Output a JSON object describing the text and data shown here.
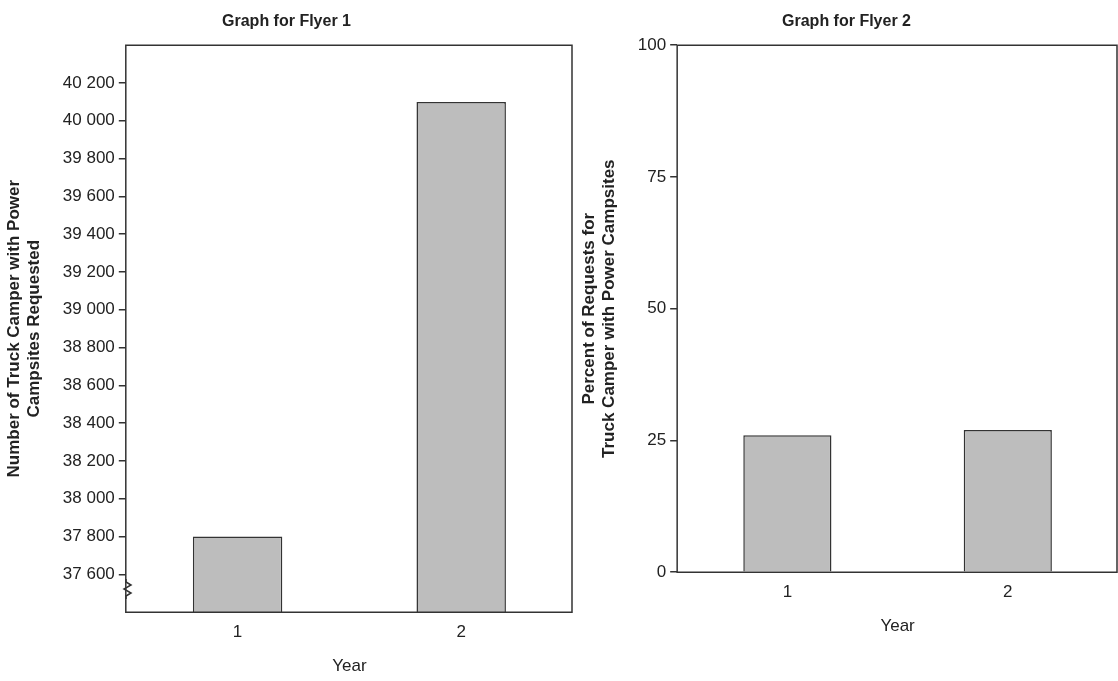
{
  "chart_data": [
    {
      "type": "bar",
      "title": "Graph for Flyer 1",
      "xlabel": "Year",
      "ylabel": "Number of Truck Camper with Power\nCampsites Requested",
      "categories": [
        "1",
        "2"
      ],
      "values": [
        37800,
        40100
      ],
      "color": "#bdbdbd",
      "ylim": [
        37400,
        40400
      ],
      "yticks": [
        {
          "value": 37600,
          "label": "37 600"
        },
        {
          "value": 37800,
          "label": "37 800"
        },
        {
          "value": 38000,
          "label": "38 000"
        },
        {
          "value": 38200,
          "label": "38 200"
        },
        {
          "value": 38400,
          "label": "38 400"
        },
        {
          "value": 38600,
          "label": "38 600"
        },
        {
          "value": 38800,
          "label": "38 800"
        },
        {
          "value": 39000,
          "label": "39 000"
        },
        {
          "value": 39200,
          "label": "39 200"
        },
        {
          "value": 39400,
          "label": "39 400"
        },
        {
          "value": 39600,
          "label": "39 600"
        },
        {
          "value": 39800,
          "label": "39 800"
        },
        {
          "value": 40000,
          "label": "40 000"
        },
        {
          "value": 40200,
          "label": "40 200"
        }
      ],
      "grid": false,
      "legend": false
    },
    {
      "type": "bar",
      "title": "Graph for Flyer 2",
      "xlabel": "Year",
      "ylabel": "Percent of Requests for\nTruck Camper with Power Campsites",
      "categories": [
        "1",
        "2"
      ],
      "values": [
        26,
        27
      ],
      "color": "#bdbdbd",
      "ylim": [
        0,
        100
      ],
      "yticks": [
        0,
        25,
        50,
        75,
        100
      ],
      "grid": false,
      "legend": false
    }
  ]
}
